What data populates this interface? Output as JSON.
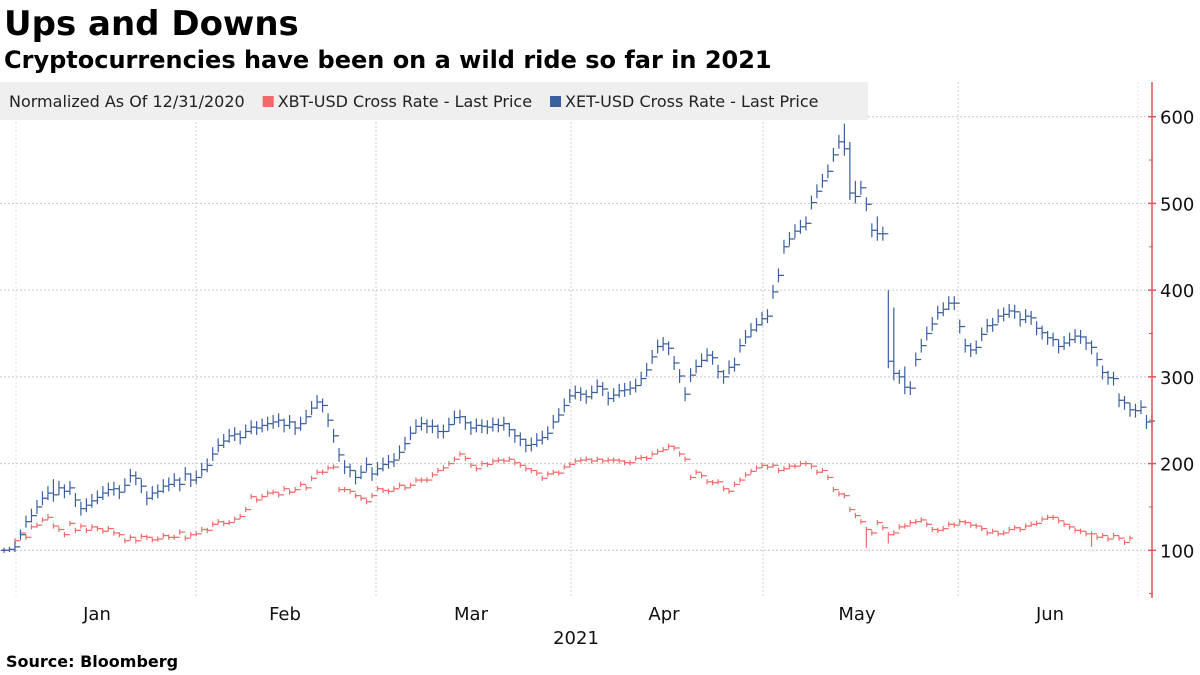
{
  "title": "Ups and Downs",
  "subtitle": "Cryptocurrencies have been on a wild ride so far in 2021",
  "source": "Source:  Bloomberg",
  "chart_data": {
    "type": "line",
    "legend": {
      "note": "Normalized As Of 12/31/2020",
      "placement": "top-left"
    },
    "series": [
      {
        "name": "XBT-USD Cross Rate - Last Price",
        "color": "#f06a6a",
        "values": [
          100,
          101,
          111,
          120,
          115,
          127,
          129,
          135,
          138,
          128,
          124,
          118,
          131,
          123,
          128,
          123,
          127,
          125,
          122,
          125,
          120,
          118,
          111,
          115,
          111,
          116,
          115,
          112,
          113,
          117,
          115,
          115,
          121,
          114,
          118,
          119,
          124,
          123,
          130,
          133,
          131,
          132,
          136,
          139,
          147,
          162,
          158,
          162,
          166,
          167,
          164,
          171,
          167,
          170,
          176,
          172,
          183,
          190,
          190,
          195,
          196,
          170,
          170,
          168,
          163,
          160,
          156,
          163,
          171,
          169,
          168,
          171,
          175,
          172,
          175,
          181,
          181,
          181,
          187,
          192,
          195,
          200,
          205,
          211,
          206,
          198,
          194,
          200,
          199,
          203,
          204,
          203,
          205,
          201,
          198,
          194,
          192,
          189,
          183,
          188,
          190,
          189,
          196,
          199,
          203,
          204,
          205,
          203,
          205,
          203,
          204,
          204,
          203,
          201,
          201,
          206,
          207,
          206,
          211,
          214,
          216,
          220,
          218,
          211,
          205,
          184,
          190,
          186,
          179,
          178,
          179,
          171,
          168,
          176,
          181,
          187,
          191,
          195,
          198,
          196,
          198,
          192,
          194,
          197,
          197,
          200,
          200,
          197,
          190,
          192,
          184,
          170,
          165,
          163,
          147,
          140,
          133,
          124,
          120,
          132,
          126,
          118,
          120,
          127,
          128,
          132,
          133,
          135,
          130,
          124,
          123,
          125,
          130,
          129,
          133,
          132,
          129,
          128,
          125,
          120,
          122,
          119,
          120,
          124,
          126,
          124,
          128,
          130,
          131,
          136,
          138,
          138,
          134,
          130,
          127,
          123,
          122,
          119,
          119,
          115,
          117,
          113,
          117,
          114,
          109,
          114
        ],
        "high": [
          102,
          103,
          114,
          122,
          118,
          130,
          132,
          138,
          142,
          131,
          127,
          121,
          134,
          126,
          131,
          126,
          130,
          128,
          125,
          128,
          123,
          121,
          114,
          118,
          114,
          119,
          118,
          115,
          116,
          120,
          118,
          118,
          124,
          117,
          121,
          122,
          127,
          126,
          133,
          136,
          134,
          135,
          139,
          142,
          150,
          165,
          161,
          165,
          169,
          170,
          167,
          174,
          170,
          173,
          179,
          175,
          186,
          193,
          193,
          198,
          199,
          173,
          173,
          171,
          166,
          163,
          159,
          166,
          174,
          172,
          171,
          174,
          178,
          175,
          178,
          184,
          184,
          184,
          190,
          195,
          198,
          203,
          208,
          214,
          209,
          201,
          197,
          203,
          202,
          206,
          207,
          206,
          208,
          204,
          201,
          197,
          195,
          192,
          186,
          191,
          193,
          192,
          199,
          202,
          206,
          207,
          208,
          206,
          208,
          206,
          207,
          207,
          206,
          204,
          204,
          209,
          210,
          209,
          214,
          217,
          219,
          223,
          221,
          214,
          208,
          187,
          193,
          189,
          182,
          181,
          182,
          174,
          171,
          179,
          184,
          190,
          194,
          198,
          201,
          199,
          201,
          195,
          197,
          200,
          200,
          203,
          203,
          200,
          193,
          195,
          187,
          173,
          168,
          166,
          150,
          143,
          136,
          127,
          123,
          135,
          129,
          121,
          123,
          130,
          131,
          135,
          136,
          138,
          133,
          127,
          126,
          128,
          133,
          132,
          136,
          135,
          132,
          131,
          128,
          123,
          125,
          122,
          123,
          127,
          129,
          127,
          131,
          133,
          134,
          139,
          141,
          141,
          137,
          133,
          130,
          126,
          125,
          122,
          122,
          118,
          120,
          116,
          120,
          117,
          112,
          117
        ],
        "low": [
          98,
          99,
          108,
          117,
          112,
          124,
          126,
          132,
          135,
          125,
          121,
          115,
          128,
          120,
          125,
          120,
          124,
          122,
          119,
          122,
          117,
          115,
          108,
          112,
          108,
          113,
          112,
          109,
          110,
          114,
          112,
          112,
          118,
          111,
          115,
          116,
          121,
          120,
          127,
          130,
          128,
          129,
          133,
          136,
          144,
          159,
          155,
          159,
          163,
          164,
          161,
          168,
          164,
          167,
          173,
          169,
          180,
          187,
          187,
          192,
          193,
          167,
          167,
          165,
          160,
          157,
          153,
          160,
          168,
          166,
          165,
          168,
          172,
          169,
          172,
          178,
          178,
          178,
          184,
          189,
          192,
          197,
          202,
          208,
          203,
          195,
          191,
          197,
          196,
          200,
          201,
          200,
          202,
          198,
          195,
          191,
          189,
          186,
          180,
          185,
          187,
          186,
          193,
          196,
          200,
          201,
          202,
          200,
          202,
          200,
          201,
          201,
          200,
          198,
          198,
          203,
          204,
          203,
          208,
          211,
          213,
          217,
          215,
          208,
          202,
          181,
          187,
          183,
          176,
          175,
          176,
          168,
          165,
          173,
          178,
          184,
          188,
          192,
          195,
          193,
          195,
          189,
          191,
          194,
          194,
          197,
          197,
          194,
          187,
          189,
          181,
          167,
          162,
          160,
          144,
          137,
          130,
          103,
          117,
          129,
          123,
          108,
          117,
          124,
          125,
          129,
          130,
          132,
          127,
          121,
          120,
          122,
          127,
          126,
          130,
          129,
          126,
          125,
          122,
          117,
          119,
          116,
          117,
          121,
          123,
          121,
          125,
          127,
          128,
          133,
          135,
          135,
          131,
          127,
          124,
          120,
          119,
          116,
          104,
          112,
          114,
          110,
          114,
          111,
          106,
          111
        ]
      },
      {
        "name": "XET-USD Cross Rate - Last Price",
        "color": "#3a5f9e",
        "values": [
          100,
          101,
          104,
          118,
          133,
          140,
          150,
          160,
          166,
          164,
          172,
          168,
          172,
          158,
          148,
          152,
          157,
          161,
          166,
          170,
          171,
          167,
          175,
          186,
          183,
          174,
          160,
          166,
          168,
          174,
          176,
          181,
          176,
          188,
          181,
          184,
          193,
          198,
          211,
          221,
          226,
          232,
          234,
          230,
          237,
          242,
          241,
          244,
          246,
          248,
          250,
          244,
          248,
          241,
          246,
          254,
          264,
          271,
          267,
          250,
          232,
          210,
          196,
          192,
          184,
          190,
          199,
          188,
          194,
          199,
          202,
          204,
          213,
          223,
          235,
          243,
          246,
          243,
          243,
          237,
          237,
          245,
          253,
          254,
          247,
          241,
          244,
          243,
          242,
          245,
          244,
          246,
          239,
          232,
          228,
          221,
          222,
          227,
          230,
          235,
          248,
          256,
          267,
          278,
          282,
          280,
          277,
          282,
          289,
          286,
          275,
          279,
          284,
          285,
          287,
          290,
          298,
          308,
          323,
          335,
          338,
          333,
          316,
          301,
          280,
          302,
          312,
          319,
          325,
          322,
          306,
          300,
          311,
          314,
          336,
          346,
          354,
          360,
          367,
          370,
          398,
          417,
          450,
          459,
          468,
          473,
          477,
          501,
          514,
          526,
          537,
          556,
          571,
          563,
          512,
          508,
          518,
          499,
          469,
          465,
          465,
          318,
          304,
          300,
          288,
          287,
          320,
          336,
          350,
          361,
          374,
          378,
          385,
          385,
          358,
          336,
          331,
          334,
          349,
          359,
          360,
          370,
          372,
          376,
          375,
          366,
          370,
          368,
          356,
          351,
          345,
          343,
          335,
          339,
          343,
          347,
          346,
          339,
          334,
          320,
          305,
          299,
          298,
          273,
          270,
          262,
          261,
          265,
          248,
          249
        ],
        "high": [
          103,
          104,
          110,
          124,
          140,
          148,
          158,
          168,
          174,
          182,
          180,
          176,
          180,
          166,
          156,
          160,
          165,
          169,
          174,
          178,
          179,
          175,
          183,
          194,
          191,
          182,
          168,
          174,
          176,
          182,
          184,
          189,
          184,
          196,
          189,
          192,
          201,
          206,
          219,
          229,
          234,
          240,
          242,
          238,
          245,
          250,
          249,
          252,
          254,
          256,
          258,
          252,
          256,
          249,
          254,
          262,
          272,
          279,
          275,
          258,
          240,
          218,
          204,
          200,
          192,
          198,
          207,
          196,
          202,
          207,
          210,
          212,
          221,
          231,
          243,
          251,
          254,
          251,
          251,
          245,
          245,
          253,
          261,
          262,
          255,
          249,
          252,
          251,
          250,
          253,
          252,
          254,
          247,
          240,
          236,
          229,
          230,
          235,
          238,
          243,
          256,
          264,
          275,
          286,
          290,
          288,
          285,
          290,
          297,
          294,
          283,
          287,
          292,
          293,
          295,
          298,
          306,
          316,
          331,
          343,
          346,
          341,
          324,
          309,
          288,
          310,
          320,
          327,
          333,
          330,
          314,
          308,
          319,
          322,
          344,
          354,
          362,
          368,
          375,
          378,
          406,
          425,
          458,
          467,
          476,
          481,
          485,
          509,
          522,
          534,
          545,
          564,
          579,
          592,
          571,
          526,
          526,
          507,
          477,
          485,
          473,
          400,
          380,
          308,
          312,
          295,
          328,
          344,
          358,
          369,
          382,
          386,
          393,
          393,
          366,
          344,
          339,
          342,
          357,
          367,
          368,
          378,
          380,
          384,
          383,
          374,
          378,
          376,
          364,
          359,
          353,
          351,
          343,
          347,
          351,
          355,
          354,
          347,
          342,
          328,
          313,
          307,
          306,
          281,
          278,
          270,
          269,
          273,
          256,
          257
        ],
        "low": [
          97,
          98,
          98,
          112,
          126,
          132,
          142,
          152,
          158,
          156,
          164,
          160,
          164,
          150,
          140,
          144,
          149,
          153,
          158,
          162,
          163,
          159,
          167,
          178,
          175,
          166,
          152,
          158,
          160,
          166,
          168,
          173,
          168,
          180,
          173,
          176,
          185,
          190,
          203,
          213,
          218,
          224,
          226,
          222,
          229,
          234,
          233,
          236,
          238,
          240,
          242,
          236,
          240,
          233,
          238,
          246,
          256,
          263,
          259,
          242,
          224,
          202,
          188,
          184,
          176,
          182,
          191,
          180,
          186,
          191,
          194,
          196,
          205,
          215,
          227,
          235,
          238,
          235,
          235,
          229,
          229,
          237,
          245,
          246,
          239,
          233,
          236,
          235,
          234,
          237,
          236,
          238,
          231,
          224,
          220,
          213,
          214,
          219,
          222,
          227,
          240,
          248,
          259,
          270,
          274,
          272,
          269,
          274,
          281,
          278,
          267,
          271,
          276,
          277,
          279,
          282,
          290,
          300,
          315,
          327,
          330,
          325,
          308,
          293,
          272,
          294,
          304,
          311,
          317,
          314,
          298,
          292,
          303,
          306,
          328,
          338,
          346,
          352,
          359,
          362,
          390,
          409,
          442,
          451,
          460,
          465,
          469,
          493,
          506,
          518,
          529,
          548,
          563,
          555,
          504,
          500,
          510,
          491,
          461,
          457,
          457,
          310,
          296,
          292,
          280,
          279,
          312,
          328,
          342,
          353,
          366,
          370,
          377,
          377,
          350,
          328,
          323,
          326,
          341,
          351,
          352,
          362,
          364,
          368,
          367,
          358,
          362,
          360,
          348,
          343,
          337,
          335,
          327,
          331,
          335,
          339,
          338,
          331,
          326,
          312,
          297,
          291,
          290,
          265,
          262,
          254,
          253,
          257,
          240,
          241
        ]
      }
    ],
    "x_axis": {
      "ticks": [
        "Jan",
        "Feb",
        "Mar",
        "Apr",
        "May",
        "Jun"
      ],
      "year_label": "2021",
      "range": [
        "2020-12-31",
        "2021-06-21"
      ]
    },
    "y_axis": {
      "ticks": [
        100,
        200,
        300,
        400,
        500,
        600
      ],
      "range": [
        45,
        640
      ],
      "side": "right"
    },
    "grid": true
  }
}
